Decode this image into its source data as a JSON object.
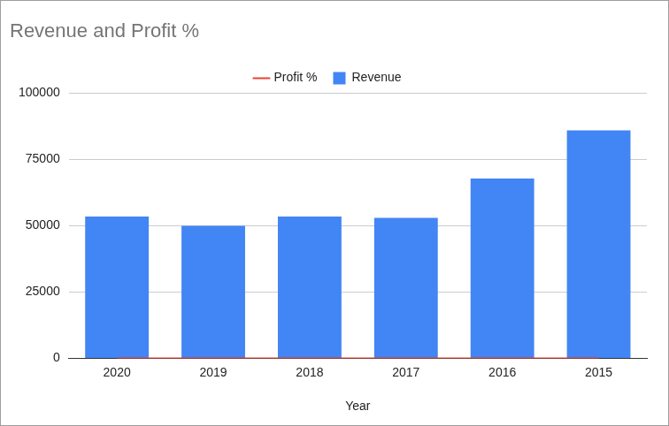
{
  "chart_data": {
    "type": "bar",
    "title": "Revenue and Profit %",
    "xlabel": "Year",
    "categories": [
      "2020",
      "2019",
      "2018",
      "2017",
      "2016",
      "2015"
    ],
    "series": [
      {
        "name": "Revenue",
        "type": "bar",
        "color": "#4285f4",
        "values": [
          53500,
          50000,
          53500,
          53000,
          67800,
          86000
        ]
      },
      {
        "name": "Profit %",
        "type": "line",
        "color": "#ea4335",
        "values": [
          0,
          0,
          0,
          0,
          0,
          0
        ]
      }
    ],
    "ylim": [
      0,
      100000
    ],
    "yticks": [
      0,
      25000,
      50000,
      75000,
      100000
    ],
    "grid": true,
    "legend": "top"
  }
}
